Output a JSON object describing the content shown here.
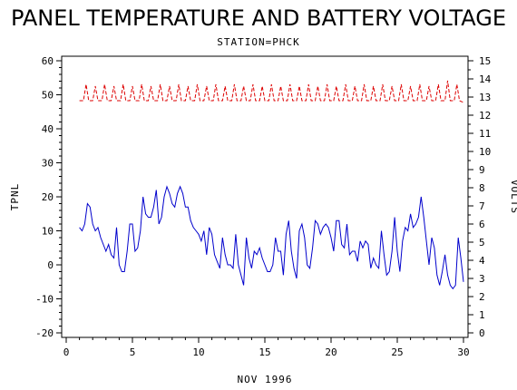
{
  "chart_data": {
    "type": "line",
    "title": "PANEL TEMPERATURE AND BATTERY VOLTAGE",
    "subtitle": "STATION=PHCK",
    "xlabel": "NOV 1996",
    "ylabel_left": "TPNL",
    "ylabel_right": "VOLTS",
    "xlim": [
      0,
      30
    ],
    "ylim_left": [
      -20,
      60
    ],
    "ylim_right": [
      0,
      15
    ],
    "x_ticks": [
      "0",
      "5",
      "10",
      "15",
      "20",
      "25",
      "30"
    ],
    "y_left_ticks": [
      "-20",
      "-10",
      "0",
      "10",
      "20",
      "30",
      "40",
      "50",
      "60"
    ],
    "y_right_ticks": [
      "0",
      "1",
      "2",
      "3",
      "4",
      "5",
      "6",
      "7",
      "8",
      "9",
      "10",
      "11",
      "12",
      "13",
      "14",
      "15"
    ],
    "grid": false,
    "series": [
      {
        "name": "",
        "axis": "left",
        "color": "#0000cc",
        "style": "solid",
        "points": [
          [
            1.0,
            11
          ],
          [
            1.2,
            10
          ],
          [
            1.4,
            12
          ],
          [
            1.6,
            18
          ],
          [
            1.8,
            17
          ],
          [
            2.0,
            12
          ],
          [
            2.2,
            10
          ],
          [
            2.4,
            11
          ],
          [
            2.6,
            8
          ],
          [
            2.8,
            6
          ],
          [
            3.0,
            4
          ],
          [
            3.2,
            6
          ],
          [
            3.4,
            3
          ],
          [
            3.6,
            2
          ],
          [
            3.8,
            11
          ],
          [
            4.0,
            0
          ],
          [
            4.2,
            -2
          ],
          [
            4.4,
            -2
          ],
          [
            4.6,
            4
          ],
          [
            4.8,
            12
          ],
          [
            5.0,
            12
          ],
          [
            5.2,
            4
          ],
          [
            5.4,
            5
          ],
          [
            5.6,
            10
          ],
          [
            5.8,
            20
          ],
          [
            6.0,
            15
          ],
          [
            6.2,
            14
          ],
          [
            6.4,
            14
          ],
          [
            6.6,
            17
          ],
          [
            6.8,
            22
          ],
          [
            7.0,
            12
          ],
          [
            7.2,
            14
          ],
          [
            7.4,
            20
          ],
          [
            7.6,
            23
          ],
          [
            7.8,
            21
          ],
          [
            8.0,
            18
          ],
          [
            8.2,
            17
          ],
          [
            8.4,
            21
          ],
          [
            8.6,
            23
          ],
          [
            8.8,
            21
          ],
          [
            9.0,
            17
          ],
          [
            9.2,
            17
          ],
          [
            9.4,
            13
          ],
          [
            9.6,
            11
          ],
          [
            9.8,
            10
          ],
          [
            10.0,
            9
          ],
          [
            10.2,
            7
          ],
          [
            10.4,
            10
          ],
          [
            10.6,
            3
          ],
          [
            10.8,
            11
          ],
          [
            11.0,
            9
          ],
          [
            11.2,
            3
          ],
          [
            11.4,
            1
          ],
          [
            11.6,
            -1
          ],
          [
            11.8,
            8
          ],
          [
            12.0,
            3
          ],
          [
            12.2,
            0
          ],
          [
            12.4,
            0
          ],
          [
            12.6,
            -1
          ],
          [
            12.8,
            9
          ],
          [
            13.0,
            0
          ],
          [
            13.2,
            -3
          ],
          [
            13.4,
            -6
          ],
          [
            13.6,
            8
          ],
          [
            13.8,
            2
          ],
          [
            14.0,
            -1
          ],
          [
            14.2,
            4
          ],
          [
            14.4,
            3
          ],
          [
            14.6,
            5
          ],
          [
            14.8,
            2
          ],
          [
            15.0,
            0
          ],
          [
            15.2,
            -2
          ],
          [
            15.4,
            -2
          ],
          [
            15.6,
            0
          ],
          [
            15.8,
            8
          ],
          [
            16.0,
            4
          ],
          [
            16.2,
            4
          ],
          [
            16.4,
            -3
          ],
          [
            16.6,
            9
          ],
          [
            16.8,
            13
          ],
          [
            17.0,
            4
          ],
          [
            17.2,
            -1
          ],
          [
            17.4,
            -4
          ],
          [
            17.6,
            10
          ],
          [
            17.8,
            12
          ],
          [
            18.0,
            8
          ],
          [
            18.2,
            0
          ],
          [
            18.4,
            -1
          ],
          [
            18.6,
            5
          ],
          [
            18.8,
            13
          ],
          [
            19.0,
            12
          ],
          [
            19.2,
            9
          ],
          [
            19.4,
            11
          ],
          [
            19.6,
            12
          ],
          [
            19.8,
            11
          ],
          [
            20.0,
            8
          ],
          [
            20.2,
            4
          ],
          [
            20.4,
            13
          ],
          [
            20.6,
            13
          ],
          [
            20.8,
            6
          ],
          [
            21.0,
            5
          ],
          [
            21.2,
            12
          ],
          [
            21.4,
            3
          ],
          [
            21.6,
            4
          ],
          [
            21.8,
            4
          ],
          [
            22.0,
            1
          ],
          [
            22.2,
            7
          ],
          [
            22.4,
            5
          ],
          [
            22.6,
            7
          ],
          [
            22.8,
            6
          ],
          [
            23.0,
            -1
          ],
          [
            23.2,
            2
          ],
          [
            23.4,
            0
          ],
          [
            23.6,
            -1
          ],
          [
            23.8,
            10
          ],
          [
            24.0,
            3
          ],
          [
            24.2,
            -3
          ],
          [
            24.4,
            -2
          ],
          [
            24.6,
            4
          ],
          [
            24.8,
            14
          ],
          [
            25.0,
            4
          ],
          [
            25.2,
            -2
          ],
          [
            25.4,
            7
          ],
          [
            25.6,
            11
          ],
          [
            25.8,
            10
          ],
          [
            26.0,
            15
          ],
          [
            26.2,
            11
          ],
          [
            26.4,
            12
          ],
          [
            26.6,
            14
          ],
          [
            26.8,
            20
          ],
          [
            27.0,
            14
          ],
          [
            27.2,
            7
          ],
          [
            27.4,
            0
          ],
          [
            27.6,
            8
          ],
          [
            27.8,
            5
          ],
          [
            28.0,
            -3
          ],
          [
            28.2,
            -6
          ],
          [
            28.4,
            -2
          ],
          [
            28.6,
            3
          ],
          [
            28.8,
            -3
          ],
          [
            29.0,
            -6
          ],
          [
            29.2,
            -7
          ],
          [
            29.4,
            -6
          ],
          [
            29.6,
            8
          ],
          [
            29.8,
            2
          ],
          [
            30.0,
            -5
          ]
        ]
      },
      {
        "name": "",
        "axis": "right",
        "color": "#dd0000",
        "style": "dashed",
        "points": [
          [
            1.0,
            12.8
          ],
          [
            1.3,
            12.8
          ],
          [
            1.5,
            13.7
          ],
          [
            1.7,
            12.8
          ],
          [
            2.0,
            12.8
          ],
          [
            2.2,
            13.6
          ],
          [
            2.4,
            12.8
          ],
          [
            2.7,
            12.8
          ],
          [
            2.9,
            13.7
          ],
          [
            3.1,
            12.8
          ],
          [
            3.4,
            12.8
          ],
          [
            3.6,
            13.6
          ],
          [
            3.8,
            12.8
          ],
          [
            4.1,
            12.8
          ],
          [
            4.3,
            13.7
          ],
          [
            4.5,
            12.8
          ],
          [
            4.8,
            12.8
          ],
          [
            5.0,
            13.6
          ],
          [
            5.2,
            12.8
          ],
          [
            5.5,
            12.8
          ],
          [
            5.7,
            13.7
          ],
          [
            5.9,
            12.8
          ],
          [
            6.2,
            12.8
          ],
          [
            6.4,
            13.6
          ],
          [
            6.6,
            12.8
          ],
          [
            6.9,
            12.8
          ],
          [
            7.1,
            13.7
          ],
          [
            7.3,
            12.8
          ],
          [
            7.6,
            12.8
          ],
          [
            7.8,
            13.6
          ],
          [
            8.0,
            12.8
          ],
          [
            8.3,
            12.8
          ],
          [
            8.5,
            13.7
          ],
          [
            8.7,
            12.8
          ],
          [
            9.0,
            12.8
          ],
          [
            9.2,
            13.6
          ],
          [
            9.4,
            12.8
          ],
          [
            9.7,
            12.8
          ],
          [
            9.9,
            13.7
          ],
          [
            10.1,
            12.8
          ],
          [
            10.4,
            12.8
          ],
          [
            10.6,
            13.6
          ],
          [
            10.8,
            12.8
          ],
          [
            11.1,
            12.8
          ],
          [
            11.3,
            13.7
          ],
          [
            11.5,
            12.8
          ],
          [
            11.8,
            12.8
          ],
          [
            12.0,
            13.6
          ],
          [
            12.2,
            12.8
          ],
          [
            12.5,
            12.8
          ],
          [
            12.7,
            13.7
          ],
          [
            12.9,
            12.8
          ],
          [
            13.2,
            12.8
          ],
          [
            13.4,
            13.6
          ],
          [
            13.6,
            12.8
          ],
          [
            13.9,
            12.8
          ],
          [
            14.1,
            13.7
          ],
          [
            14.3,
            12.8
          ],
          [
            14.6,
            12.8
          ],
          [
            14.8,
            13.6
          ],
          [
            15.0,
            12.8
          ],
          [
            15.3,
            12.8
          ],
          [
            15.5,
            13.7
          ],
          [
            15.7,
            12.8
          ],
          [
            16.0,
            12.8
          ],
          [
            16.2,
            13.6
          ],
          [
            16.4,
            12.8
          ],
          [
            16.7,
            12.8
          ],
          [
            16.9,
            13.7
          ],
          [
            17.1,
            12.8
          ],
          [
            17.4,
            12.8
          ],
          [
            17.6,
            13.6
          ],
          [
            17.8,
            12.8
          ],
          [
            18.1,
            12.8
          ],
          [
            18.3,
            13.7
          ],
          [
            18.5,
            12.8
          ],
          [
            18.8,
            12.8
          ],
          [
            19.0,
            13.6
          ],
          [
            19.2,
            12.8
          ],
          [
            19.5,
            12.8
          ],
          [
            19.7,
            13.7
          ],
          [
            19.9,
            12.8
          ],
          [
            20.2,
            12.8
          ],
          [
            20.4,
            13.6
          ],
          [
            20.6,
            12.8
          ],
          [
            20.9,
            12.8
          ],
          [
            21.1,
            13.7
          ],
          [
            21.3,
            12.8
          ],
          [
            21.6,
            12.8
          ],
          [
            21.8,
            13.6
          ],
          [
            22.0,
            12.8
          ],
          [
            22.3,
            12.8
          ],
          [
            22.5,
            13.7
          ],
          [
            22.7,
            12.8
          ],
          [
            23.0,
            12.8
          ],
          [
            23.2,
            13.6
          ],
          [
            23.4,
            12.8
          ],
          [
            23.7,
            12.8
          ],
          [
            23.9,
            13.7
          ],
          [
            24.1,
            12.8
          ],
          [
            24.4,
            12.8
          ],
          [
            24.6,
            13.6
          ],
          [
            24.8,
            12.8
          ],
          [
            25.1,
            12.8
          ],
          [
            25.3,
            13.7
          ],
          [
            25.5,
            12.8
          ],
          [
            25.8,
            12.8
          ],
          [
            26.0,
            13.6
          ],
          [
            26.2,
            12.8
          ],
          [
            26.5,
            12.8
          ],
          [
            26.7,
            13.7
          ],
          [
            26.9,
            12.8
          ],
          [
            27.2,
            12.8
          ],
          [
            27.4,
            13.6
          ],
          [
            27.6,
            12.8
          ],
          [
            27.9,
            12.8
          ],
          [
            28.1,
            13.7
          ],
          [
            28.3,
            12.8
          ],
          [
            28.6,
            12.8
          ],
          [
            28.8,
            13.9
          ],
          [
            29.0,
            12.8
          ],
          [
            29.3,
            12.8
          ],
          [
            29.5,
            13.7
          ],
          [
            29.7,
            12.8
          ],
          [
            30.0,
            12.7
          ]
        ]
      }
    ]
  }
}
